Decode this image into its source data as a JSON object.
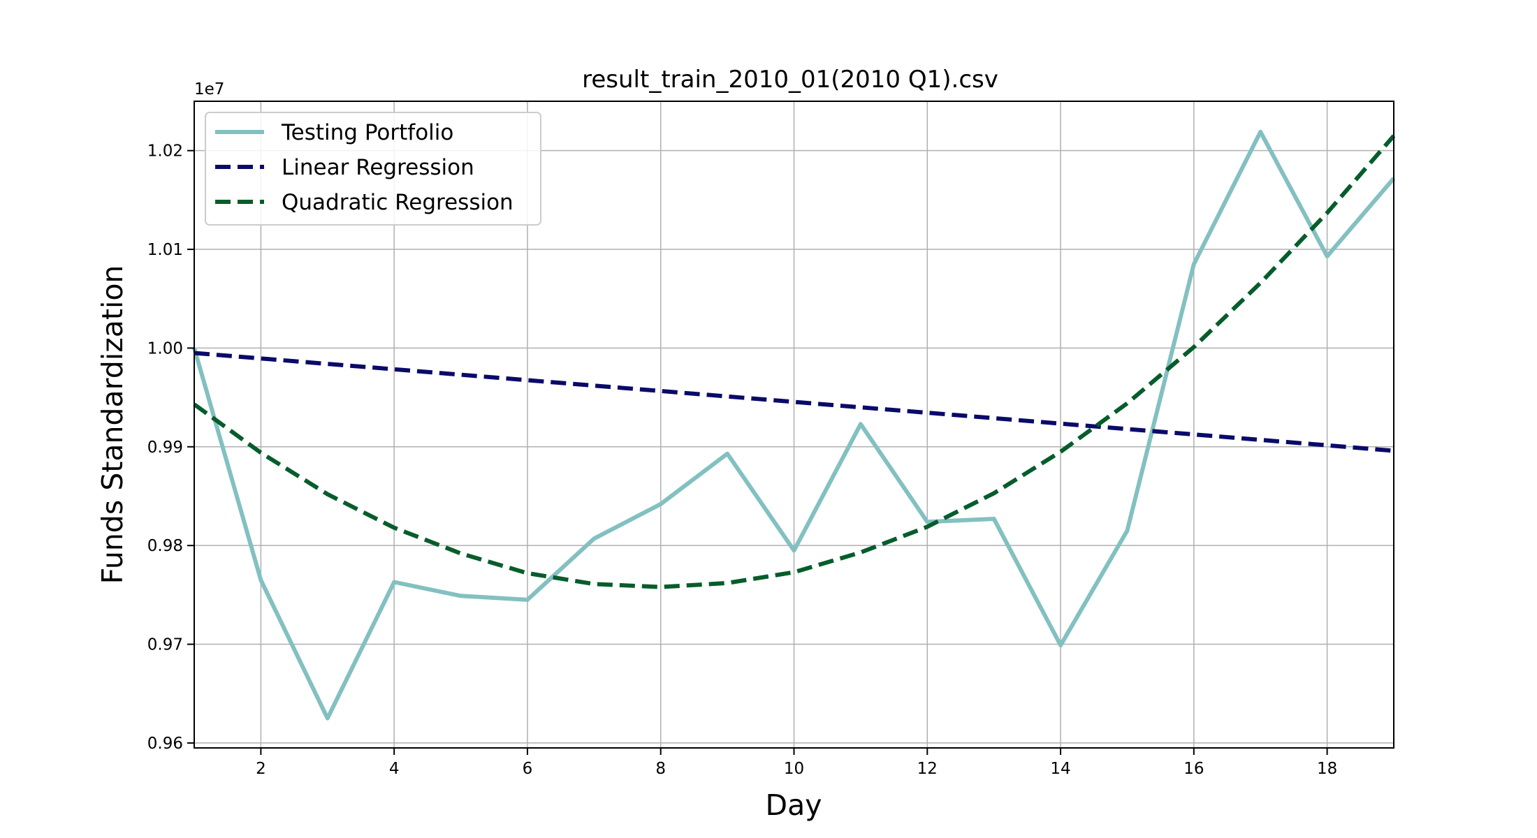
{
  "chart_data": {
    "type": "line",
    "title": "result_train_2010_01(2010 Q1).csv",
    "xlabel": "Day",
    "ylabel": "Funds Standardization",
    "y_offset_label": "1e7",
    "xlim": [
      1,
      19
    ],
    "ylim": [
      9.595,
      10.25
    ],
    "y_scale_factor": 10000000,
    "x_ticks": [
      2,
      4,
      6,
      8,
      10,
      12,
      14,
      16,
      18
    ],
    "x_tick_labels": [
      "2",
      "4",
      "6",
      "8",
      "10",
      "12",
      "14",
      "16",
      "18"
    ],
    "y_ticks": [
      9.6,
      9.7,
      9.8,
      9.9,
      10.0,
      10.1,
      10.2
    ],
    "y_tick_labels": [
      "0.96",
      "0.97",
      "0.98",
      "0.99",
      "1.00",
      "1.01",
      "1.02"
    ],
    "grid": true,
    "legend_position": "upper-left",
    "x": [
      1,
      2,
      3,
      4,
      5,
      6,
      7,
      8,
      9,
      10,
      11,
      12,
      13,
      14,
      15,
      16,
      17,
      18,
      19
    ],
    "series": [
      {
        "name": "Testing Portfolio",
        "style": "solid",
        "color": "#83c0c1",
        "values": [
          10.0,
          9.765,
          9.625,
          9.763,
          9.749,
          9.745,
          9.807,
          9.842,
          9.893,
          9.795,
          9.923,
          9.824,
          9.827,
          9.699,
          9.815,
          10.085,
          10.219,
          10.093,
          10.172
        ]
      },
      {
        "name": "Linear Regression",
        "style": "dashed",
        "color": "#0a0a6b",
        "values": [
          9.995,
          9.9895,
          9.984,
          9.9785,
          9.973,
          9.9675,
          9.962,
          9.9565,
          9.951,
          9.9455,
          9.94,
          9.9345,
          9.929,
          9.9235,
          9.918,
          9.9125,
          9.907,
          9.9015,
          9.896
        ]
      },
      {
        "name": "Quadratic Regression",
        "style": "dashed",
        "color": "#055d2b",
        "values": [
          9.943,
          9.894,
          9.852,
          9.818,
          9.792,
          9.772,
          9.761,
          9.758,
          9.762,
          9.773,
          9.793,
          9.819,
          9.853,
          9.895,
          9.944,
          10.001,
          10.066,
          10.137,
          10.215
        ]
      }
    ]
  }
}
